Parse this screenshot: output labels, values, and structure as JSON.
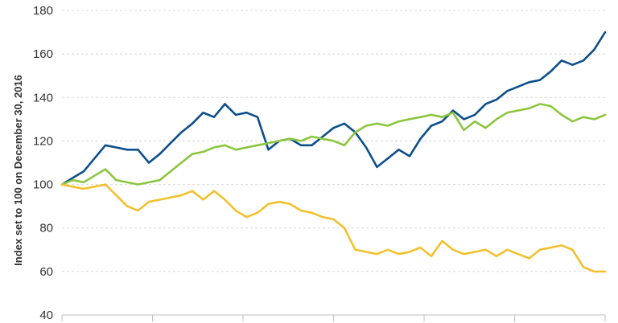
{
  "chart_data": {
    "type": "line",
    "title": "",
    "xlabel": "",
    "ylabel": "Index set to 100 on December 30, 2016",
    "ylim": [
      40,
      180
    ],
    "y_ticks": [
      40,
      60,
      80,
      100,
      120,
      140,
      160,
      180
    ],
    "x_tick_count": 7,
    "grid": true,
    "legend": "none",
    "x": [
      0,
      2,
      4,
      6,
      8,
      10,
      12,
      14,
      16,
      18,
      20,
      22,
      24,
      26,
      28,
      30,
      32,
      34,
      36,
      38,
      40,
      42,
      44,
      46,
      48,
      50,
      52,
      54,
      56,
      58,
      60,
      62,
      64,
      66,
      68,
      70,
      72,
      74,
      76,
      78,
      80,
      82,
      84,
      86,
      88,
      90,
      92,
      94,
      96,
      98,
      100
    ],
    "series": [
      {
        "color": "#0d4f8b",
        "values": [
          100,
          103,
          106,
          112,
          118,
          117,
          116,
          116,
          110,
          114,
          119,
          124,
          128,
          133,
          131,
          137,
          132,
          133,
          131,
          116,
          120,
          121,
          118,
          118,
          122,
          126,
          128,
          124,
          117,
          108,
          112,
          116,
          113,
          121,
          127,
          129,
          134,
          130,
          132,
          137,
          139,
          143,
          145,
          147,
          148,
          152,
          157,
          155,
          157,
          162,
          170
        ]
      },
      {
        "color": "#8cc63f",
        "values": [
          100,
          102,
          101,
          104,
          107,
          102,
          101,
          100,
          101,
          102,
          106,
          110,
          114,
          115,
          117,
          118,
          116,
          117,
          118,
          119,
          120,
          121,
          120,
          122,
          121,
          120,
          118,
          124,
          127,
          128,
          127,
          129,
          130,
          131,
          132,
          131,
          133,
          125,
          129,
          126,
          130,
          133,
          134,
          135,
          137,
          136,
          132,
          129,
          131,
          130,
          132
        ]
      },
      {
        "color": "#f2c12e",
        "values": [
          100,
          99,
          98,
          99,
          100,
          95,
          90,
          88,
          92,
          93,
          94,
          95,
          97,
          93,
          97,
          93,
          88,
          85,
          87,
          91,
          92,
          91,
          88,
          87,
          85,
          84,
          80,
          70,
          69,
          68,
          70,
          68,
          69,
          71,
          67,
          74,
          70,
          68,
          69,
          70,
          67,
          70,
          68,
          66,
          70,
          71,
          72,
          70,
          62,
          60,
          60
        ]
      }
    ]
  }
}
